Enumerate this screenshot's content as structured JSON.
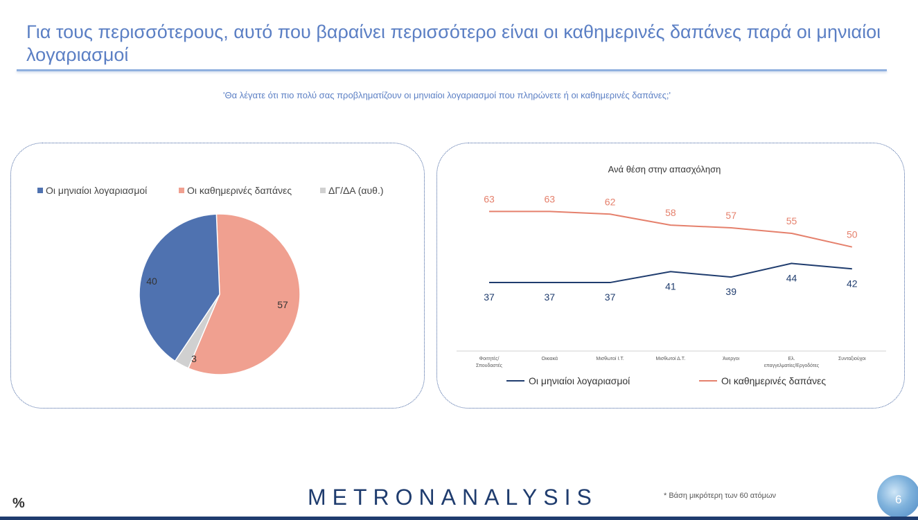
{
  "page": {
    "title": "Για τους περισσότερους, αυτό που βαραίνει περισσότερο είναι οι καθημερινές δαπάνες παρά οι μηνιαίοι λογαριασμοί",
    "subtitle": "'Θα λέγατε ότι πιο πολύ σας προβληματίζουν οι μηνιαίοι λογαριασμοί που πληρώνετε ή οι καθημερινές δαπάνες;'",
    "logo": "METRONANALYSIS",
    "footnote": "*  Βάση μικρότερη των 60 ατόμων",
    "unit": "%",
    "page_number": "6"
  },
  "colors": {
    "title": "#5b7fc4",
    "monthly": "#4f72b0",
    "daily": "#f0a090",
    "dk": "#d0d0d0",
    "line_monthly": "#1f3c6e",
    "line_daily": "#e5806c"
  },
  "chart_data": [
    {
      "type": "pie",
      "title": "",
      "categories": [
        "Οι μηνιαίοι λογαριασμοί",
        "Οι καθημερινές δαπάνες",
        "ΔΓ/ΔΑ (αυθ.)"
      ],
      "values": [
        40,
        57,
        3
      ],
      "legend_position": "top"
    },
    {
      "type": "line",
      "title": "Ανά θέση στην απασχόληση",
      "categories": [
        "Φοιτητές/ Σπουδαστές",
        "Οικιακά",
        "Μισθωτοί Ι.Τ.",
        "Μισθωτοί Δ.Τ.",
        "Άνεργοι",
        "Ελ. επαγγελματίες/Εργοδότες",
        "Συνταξιούχοι"
      ],
      "series": [
        {
          "name": "Οι μηνιαίοι λογαριασμοί",
          "values": [
            37,
            37,
            37,
            41,
            39,
            44,
            42
          ]
        },
        {
          "name": "Οι καθημερινές δαπάνες",
          "values": [
            63,
            63,
            62,
            58,
            57,
            55,
            50
          ]
        }
      ],
      "legend_position": "bottom",
      "grid": false
    }
  ]
}
